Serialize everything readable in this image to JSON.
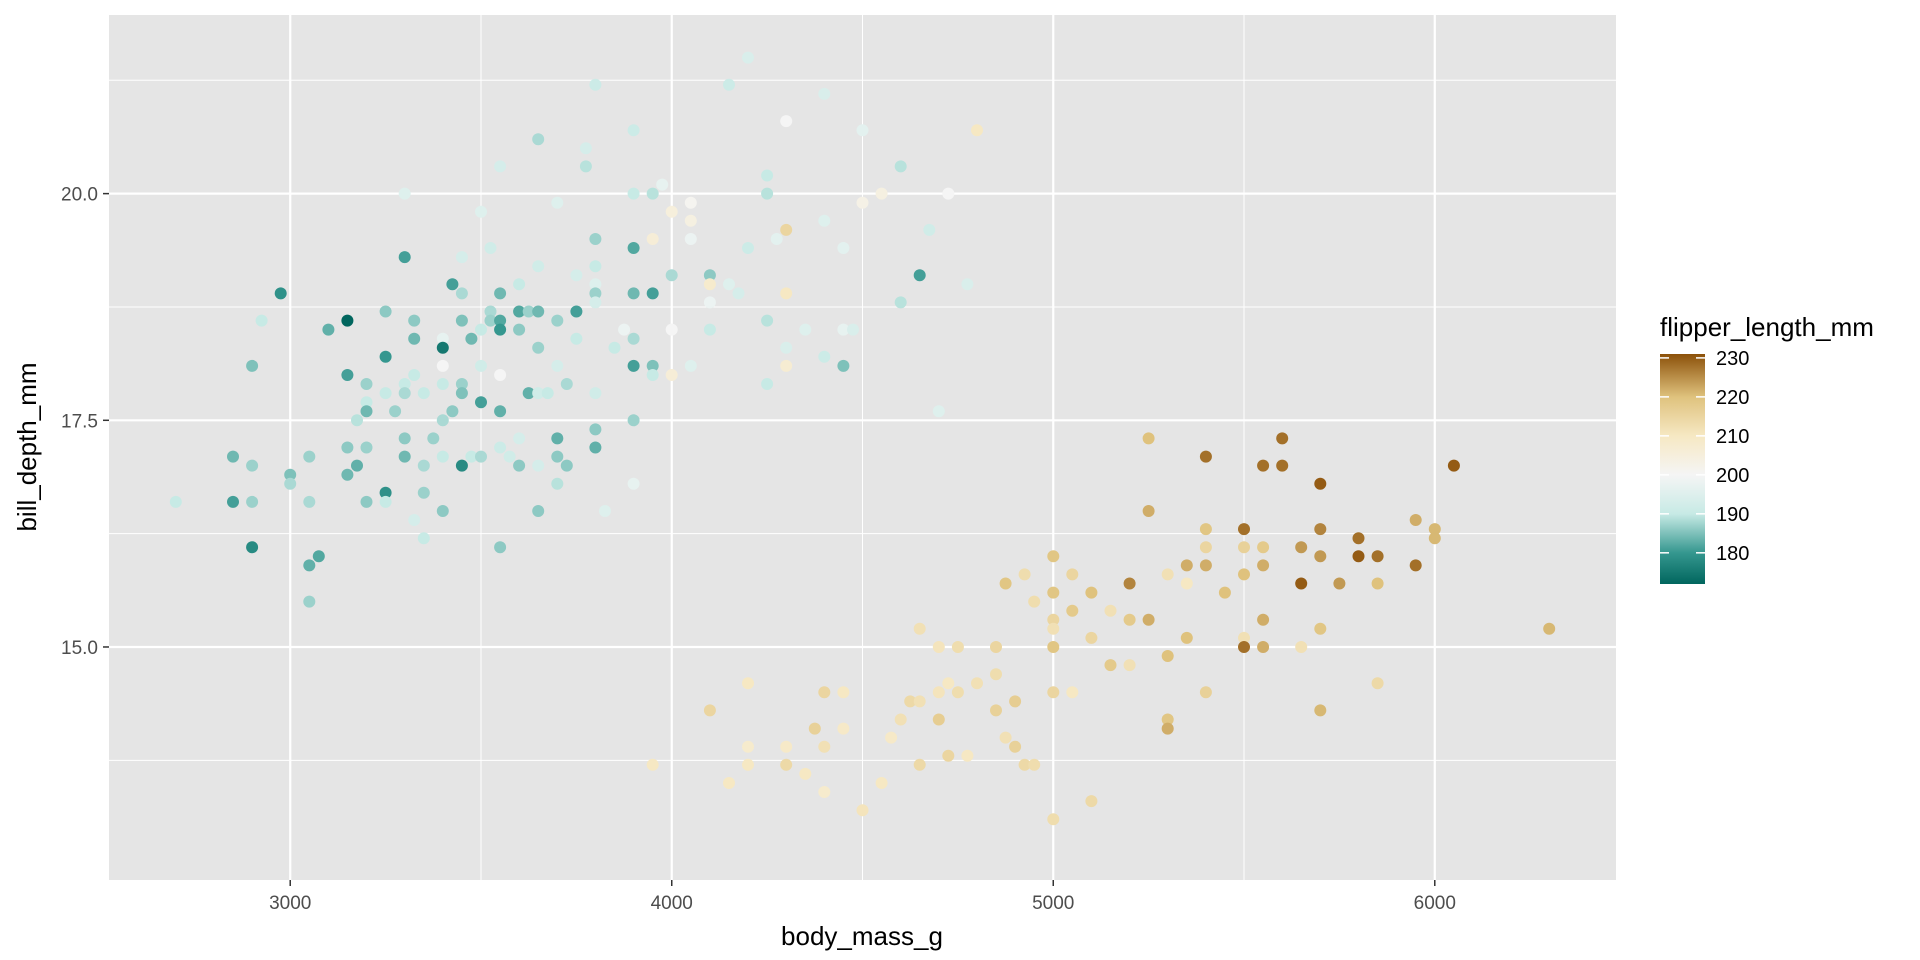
{
  "chart_data": {
    "type": "scatter",
    "xlabel": "body_mass_g",
    "ylabel": "bill_depth_mm",
    "xlim": [
      2525,
      6475
    ],
    "ylim": [
      12.43,
      21.97
    ],
    "x_ticks": [
      3000,
      4000,
      5000,
      6000
    ],
    "x_tick_labels": [
      "3000",
      "4000",
      "5000",
      "6000"
    ],
    "y_ticks": [
      15.0,
      17.5,
      20.0
    ],
    "y_tick_labels": [
      "15.0",
      "17.5",
      "20.0"
    ],
    "grid": true,
    "panel_background": "#e5e5e5",
    "grid_color": "#ffffff",
    "legend": {
      "title": "flipper_length_mm",
      "position": "right",
      "range": [
        172,
        231
      ],
      "ticks": [
        180,
        190,
        200,
        210,
        220,
        230
      ],
      "tick_labels": [
        "180",
        "190",
        "200",
        "210",
        "220",
        "230"
      ],
      "palette": [
        [
          172,
          "#01665e"
        ],
        [
          180,
          "#35978f"
        ],
        [
          190,
          "#c7eae5"
        ],
        [
          200,
          "#f5f5f5"
        ],
        [
          210,
          "#f6e8c3"
        ],
        [
          220,
          "#dfc27d"
        ],
        [
          231,
          "#8c510a"
        ]
      ]
    },
    "points": [
      [
        2700,
        16.6,
        190
      ],
      [
        2850,
        17.1,
        184
      ],
      [
        2850,
        16.6,
        181
      ],
      [
        2900,
        18.1,
        185
      ],
      [
        2900,
        17.0,
        187
      ],
      [
        2900,
        16.6,
        187
      ],
      [
        2900,
        16.1,
        178
      ],
      [
        2925,
        18.6,
        190
      ],
      [
        2975,
        18.9,
        179
      ],
      [
        3000,
        16.9,
        185
      ],
      [
        3000,
        16.8,
        188
      ],
      [
        3050,
        17.1,
        187
      ],
      [
        3050,
        16.6,
        188
      ],
      [
        3050,
        15.9,
        183
      ],
      [
        3050,
        15.5,
        187
      ],
      [
        3075,
        16.0,
        182
      ],
      [
        3100,
        18.5,
        183
      ],
      [
        3150,
        18.6,
        172
      ],
      [
        3150,
        18.0,
        181
      ],
      [
        3150,
        17.2,
        186
      ],
      [
        3150,
        16.9,
        184
      ],
      [
        3175,
        17.5,
        189
      ],
      [
        3175,
        17.0,
        183
      ],
      [
        3200,
        17.9,
        187
      ],
      [
        3200,
        17.7,
        190
      ],
      [
        3200,
        17.6,
        184
      ],
      [
        3200,
        17.2,
        187
      ],
      [
        3200,
        16.6,
        186
      ],
      [
        3250,
        18.7,
        186
      ],
      [
        3250,
        18.2,
        180
      ],
      [
        3250,
        17.8,
        190
      ],
      [
        3250,
        16.7,
        179
      ],
      [
        3250,
        16.6,
        190
      ],
      [
        3275,
        17.6,
        187
      ],
      [
        3300,
        20.0,
        195
      ],
      [
        3300,
        19.3,
        181
      ],
      [
        3300,
        17.9,
        190
      ],
      [
        3300,
        17.8,
        188
      ],
      [
        3300,
        17.3,
        186
      ],
      [
        3300,
        17.1,
        184
      ],
      [
        3325,
        18.6,
        186
      ],
      [
        3325,
        18.4,
        184
      ],
      [
        3325,
        18.0,
        190
      ],
      [
        3325,
        16.4,
        193
      ],
      [
        3350,
        17.8,
        190
      ],
      [
        3350,
        17.0,
        188
      ],
      [
        3350,
        16.7,
        187
      ],
      [
        3350,
        16.2,
        190
      ],
      [
        3375,
        17.3,
        187
      ],
      [
        3400,
        18.4,
        197
      ],
      [
        3400,
        18.3,
        175
      ],
      [
        3400,
        18.1,
        200
      ],
      [
        3400,
        17.9,
        190
      ],
      [
        3400,
        17.5,
        188
      ],
      [
        3400,
        17.1,
        190
      ],
      [
        3400,
        16.5,
        186
      ],
      [
        3425,
        19.0,
        181
      ],
      [
        3425,
        17.6,
        186
      ],
      [
        3450,
        19.3,
        193
      ],
      [
        3450,
        18.9,
        188
      ],
      [
        3450,
        18.6,
        185
      ],
      [
        3450,
        17.9,
        187
      ],
      [
        3450,
        17.8,
        185
      ],
      [
        3450,
        17.0,
        178
      ],
      [
        3475,
        18.4,
        184
      ],
      [
        3475,
        17.1,
        190
      ],
      [
        3500,
        19.8,
        195
      ],
      [
        3500,
        18.5,
        190
      ],
      [
        3500,
        18.1,
        192
      ],
      [
        3500,
        17.7,
        181
      ],
      [
        3500,
        17.1,
        188
      ],
      [
        3525,
        19.4,
        192
      ],
      [
        3525,
        18.7,
        188
      ],
      [
        3525,
        18.6,
        187
      ],
      [
        3550,
        20.3,
        193
      ],
      [
        3550,
        18.9,
        184
      ],
      [
        3550,
        18.6,
        182
      ],
      [
        3550,
        18.5,
        180
      ],
      [
        3550,
        18.0,
        200
      ],
      [
        3550,
        17.6,
        183
      ],
      [
        3550,
        17.2,
        191
      ],
      [
        3550,
        16.1,
        186
      ],
      [
        3575,
        17.1,
        192
      ],
      [
        3600,
        19.0,
        190
      ],
      [
        3600,
        18.7,
        182
      ],
      [
        3600,
        18.5,
        186
      ],
      [
        3600,
        17.3,
        193
      ],
      [
        3600,
        17.0,
        186
      ],
      [
        3625,
        18.7,
        187
      ],
      [
        3625,
        17.8,
        183
      ],
      [
        3650,
        20.6,
        188
      ],
      [
        3650,
        19.2,
        192
      ],
      [
        3650,
        18.7,
        184
      ],
      [
        3650,
        18.3,
        187
      ],
      [
        3650,
        17.8,
        192
      ],
      [
        3650,
        17.0,
        193
      ],
      [
        3650,
        16.5,
        186
      ],
      [
        3675,
        17.8,
        190
      ],
      [
        3700,
        19.9,
        195
      ],
      [
        3700,
        18.6,
        187
      ],
      [
        3700,
        18.1,
        193
      ],
      [
        3700,
        17.3,
        183
      ],
      [
        3700,
        17.1,
        186
      ],
      [
        3700,
        16.8,
        189
      ],
      [
        3725,
        17.0,
        186
      ],
      [
        3725,
        17.9,
        188
      ],
      [
        3750,
        19.1,
        193
      ],
      [
        3750,
        18.7,
        181
      ],
      [
        3750,
        18.4,
        190
      ],
      [
        3775,
        20.5,
        193
      ],
      [
        3775,
        20.3,
        189
      ],
      [
        3800,
        21.2,
        191
      ],
      [
        3800,
        19.5,
        187
      ],
      [
        3800,
        19.2,
        190
      ],
      [
        3800,
        19.0,
        195
      ],
      [
        3800,
        18.9,
        187
      ],
      [
        3800,
        18.8,
        193
      ],
      [
        3800,
        17.8,
        192
      ],
      [
        3800,
        17.4,
        186
      ],
      [
        3800,
        17.2,
        183
      ],
      [
        3825,
        16.5,
        195
      ],
      [
        3850,
        18.3,
        190
      ],
      [
        3875,
        18.5,
        198
      ],
      [
        3900,
        20.7,
        191
      ],
      [
        3900,
        20.0,
        190
      ],
      [
        3900,
        19.4,
        182
      ],
      [
        3900,
        18.9,
        184
      ],
      [
        3900,
        18.4,
        188
      ],
      [
        3900,
        18.1,
        181
      ],
      [
        3900,
        17.5,
        187
      ],
      [
        3900,
        16.8,
        197
      ],
      [
        3950,
        20.0,
        189
      ],
      [
        3950,
        19.5,
        206
      ],
      [
        3950,
        18.9,
        181
      ],
      [
        3950,
        18.1,
        185
      ],
      [
        3950,
        18.0,
        190
      ],
      [
        3950,
        13.7,
        210
      ],
      [
        3975,
        20.1,
        197
      ],
      [
        4000,
        19.8,
        205
      ],
      [
        4000,
        19.1,
        188
      ],
      [
        4000,
        18.5,
        200
      ],
      [
        4000,
        18.0,
        206
      ],
      [
        4050,
        19.9,
        201
      ],
      [
        4050,
        19.7,
        204
      ],
      [
        4050,
        19.5,
        198
      ],
      [
        4050,
        18.1,
        195
      ],
      [
        4100,
        19.1,
        186
      ],
      [
        4100,
        18.5,
        190
      ],
      [
        4100,
        18.8,
        198
      ],
      [
        4100,
        19.0,
        208
      ],
      [
        4150,
        21.2,
        191
      ],
      [
        4150,
        19.0,
        195
      ],
      [
        4175,
        18.9,
        193
      ],
      [
        4200,
        21.5,
        194
      ],
      [
        4200,
        19.4,
        191
      ],
      [
        4250,
        20.2,
        190
      ],
      [
        4250,
        20.0,
        189
      ],
      [
        4250,
        18.6,
        189
      ],
      [
        4250,
        17.9,
        190
      ],
      [
        4275,
        19.5,
        196
      ],
      [
        4300,
        20.8,
        200
      ],
      [
        4300,
        19.6,
        215
      ],
      [
        4300,
        18.9,
        210
      ],
      [
        4300,
        18.3,
        194
      ],
      [
        4300,
        18.1,
        207
      ],
      [
        4350,
        18.5,
        195
      ],
      [
        4400,
        21.1,
        194
      ],
      [
        4400,
        19.7,
        195
      ],
      [
        4400,
        18.2,
        191
      ],
      [
        4450,
        19.4,
        196
      ],
      [
        4450,
        18.5,
        197
      ],
      [
        4450,
        18.1,
        185
      ],
      [
        4475,
        18.5,
        194
      ],
      [
        4500,
        20.7,
        196
      ],
      [
        4500,
        19.9,
        203
      ],
      [
        4550,
        20.0,
        204
      ],
      [
        4600,
        20.3,
        189
      ],
      [
        4600,
        18.8,
        189
      ],
      [
        4650,
        19.1,
        181
      ],
      [
        4675,
        19.6,
        192
      ],
      [
        4700,
        17.6,
        195
      ],
      [
        4725,
        20.0,
        200
      ],
      [
        4775,
        19.0,
        194
      ],
      [
        4800,
        20.7,
        210
      ],
      [
        4100,
        14.3,
        215
      ],
      [
        4150,
        13.5,
        210
      ],
      [
        4200,
        14.6,
        210
      ],
      [
        4200,
        13.9,
        208
      ],
      [
        4200,
        13.7,
        210
      ],
      [
        4300,
        13.9,
        209
      ],
      [
        4300,
        13.7,
        214
      ],
      [
        4350,
        13.6,
        210
      ],
      [
        4375,
        14.1,
        216
      ],
      [
        4400,
        14.5,
        215
      ],
      [
        4400,
        13.9,
        212
      ],
      [
        4400,
        13.4,
        208
      ],
      [
        4450,
        14.5,
        210
      ],
      [
        4450,
        14.1,
        209
      ],
      [
        4500,
        13.2,
        211
      ],
      [
        4550,
        13.5,
        210
      ],
      [
        4575,
        14.0,
        209
      ],
      [
        4600,
        14.2,
        212
      ],
      [
        4625,
        14.4,
        214
      ],
      [
        4650,
        15.2,
        212
      ],
      [
        4650,
        14.4,
        212
      ],
      [
        4650,
        13.7,
        214
      ],
      [
        4700,
        15.0,
        211
      ],
      [
        4700,
        14.5,
        211
      ],
      [
        4700,
        14.2,
        217
      ],
      [
        4725,
        14.6,
        210
      ],
      [
        4725,
        13.8,
        215
      ],
      [
        4750,
        14.5,
        213
      ],
      [
        4750,
        15.0,
        213
      ],
      [
        4775,
        13.8,
        210
      ],
      [
        4800,
        14.6,
        212
      ],
      [
        4850,
        15.0,
        215
      ],
      [
        4850,
        14.7,
        213
      ],
      [
        4850,
        14.3,
        216
      ],
      [
        4875,
        15.7,
        219
      ],
      [
        4875,
        14.0,
        212
      ],
      [
        4900,
        14.4,
        217
      ],
      [
        4900,
        13.9,
        216
      ],
      [
        4925,
        15.8,
        213
      ],
      [
        4925,
        13.7,
        214
      ],
      [
        4950,
        15.5,
        213
      ],
      [
        4950,
        13.7,
        213
      ],
      [
        5000,
        16.0,
        219
      ],
      [
        5000,
        15.6,
        219
      ],
      [
        5000,
        15.3,
        215
      ],
      [
        5000,
        15.2,
        212
      ],
      [
        5000,
        15.0,
        219
      ],
      [
        5000,
        14.5,
        215
      ],
      [
        5000,
        13.1,
        213
      ],
      [
        5050,
        15.8,
        215
      ],
      [
        5050,
        15.4,
        218
      ],
      [
        5050,
        14.5,
        210
      ],
      [
        5100,
        15.6,
        220
      ],
      [
        5100,
        15.1,
        215
      ],
      [
        5100,
        13.3,
        214
      ],
      [
        5150,
        15.4,
        212
      ],
      [
        5150,
        14.8,
        218
      ],
      [
        5200,
        15.7,
        226
      ],
      [
        5200,
        15.3,
        218
      ],
      [
        5200,
        14.8,
        212
      ],
      [
        5250,
        17.3,
        220
      ],
      [
        5250,
        16.5,
        222
      ],
      [
        5250,
        15.3,
        222
      ],
      [
        5300,
        15.8,
        212
      ],
      [
        5300,
        14.9,
        220
      ],
      [
        5300,
        14.2,
        219
      ],
      [
        5300,
        14.1,
        222
      ],
      [
        5350,
        15.9,
        222
      ],
      [
        5350,
        15.7,
        210
      ],
      [
        5350,
        15.1,
        220
      ],
      [
        5400,
        17.1,
        228
      ],
      [
        5400,
        16.3,
        219
      ],
      [
        5400,
        16.1,
        215
      ],
      [
        5400,
        15.9,
        222
      ],
      [
        5400,
        14.5,
        216
      ],
      [
        5450,
        15.6,
        220
      ],
      [
        5500,
        16.3,
        228
      ],
      [
        5500,
        16.1,
        216
      ],
      [
        5500,
        15.8,
        220
      ],
      [
        5500,
        15.1,
        212
      ],
      [
        5500,
        15.0,
        228
      ],
      [
        5550,
        17.0,
        228
      ],
      [
        5550,
        16.1,
        218
      ],
      [
        5550,
        15.9,
        222
      ],
      [
        5550,
        15.3,
        222
      ],
      [
        5550,
        15.0,
        222
      ],
      [
        5600,
        17.3,
        228
      ],
      [
        5600,
        17.0,
        228
      ],
      [
        5650,
        16.1,
        224
      ],
      [
        5650,
        15.7,
        230
      ],
      [
        5650,
        15.0,
        212
      ],
      [
        5700,
        16.8,
        230
      ],
      [
        5700,
        16.3,
        226
      ],
      [
        5700,
        16.0,
        224
      ],
      [
        5700,
        15.2,
        219
      ],
      [
        5700,
        14.3,
        221
      ],
      [
        5750,
        15.7,
        224
      ],
      [
        5800,
        16.2,
        228
      ],
      [
        5800,
        16.0,
        230
      ],
      [
        5850,
        16.0,
        228
      ],
      [
        5850,
        15.7,
        220
      ],
      [
        5850,
        14.6,
        214
      ],
      [
        5950,
        16.4,
        222
      ],
      [
        5950,
        15.9,
        228
      ],
      [
        6000,
        16.3,
        221
      ],
      [
        6000,
        16.2,
        221
      ],
      [
        6050,
        17.0,
        230
      ],
      [
        6300,
        15.2,
        221
      ]
    ]
  }
}
